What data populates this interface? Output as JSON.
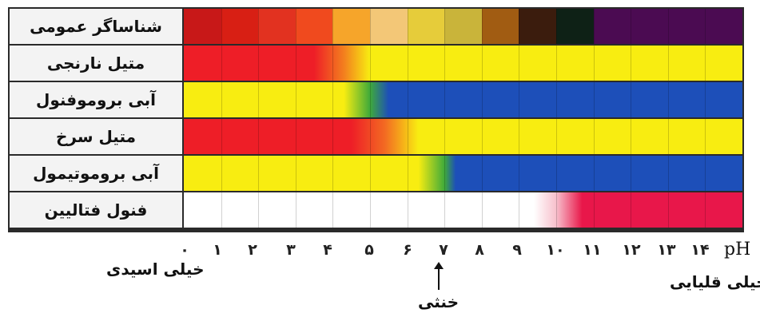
{
  "indicators": [
    {
      "name": "شناساگر عمومی",
      "id": "universal"
    },
    {
      "name": "متیل نارنجی",
      "id": "methyl-orange"
    },
    {
      "name": "آبی بروموفنول",
      "id": "bromophenol-blue"
    },
    {
      "name": "متیل سرخ",
      "id": "methyl-red"
    },
    {
      "name": "آبی بروموتیمول",
      "id": "bromothymol-blue"
    },
    {
      "name": "فنول فتالیین",
      "id": "phenolphthalein"
    }
  ],
  "ph_ticks": [
    "۰",
    "۱",
    "۲",
    "۳",
    "۴",
    "۵",
    "۶",
    "۷",
    "۸",
    "۹",
    "۱۰",
    "۱۱",
    "۱۲",
    "۱۳",
    "۱۴"
  ],
  "ph_label": "pH",
  "captions": {
    "very_acidic": "خیلی اسیدی",
    "neutral": "خنثی",
    "very_basic": "خیلی قلیایی"
  },
  "colors": {
    "universal": [
      "#c81818",
      "#d81f14",
      "#e23220",
      "#f04a1e",
      "#f6a52a",
      "#f3c777",
      "#e6cc3a",
      "#c9b43a",
      "#a15c12",
      "#3b1c0d",
      "#0e2116",
      "#4b0b52",
      "#4b0b52",
      "#4b0b52",
      "#4b0b52"
    ],
    "red": "#ee1e27",
    "yellow": "#f8ed11",
    "blue": "#1d4fb9",
    "pink": "#e8174a",
    "white": "#ffffff",
    "green": "#3faa3a"
  }
}
